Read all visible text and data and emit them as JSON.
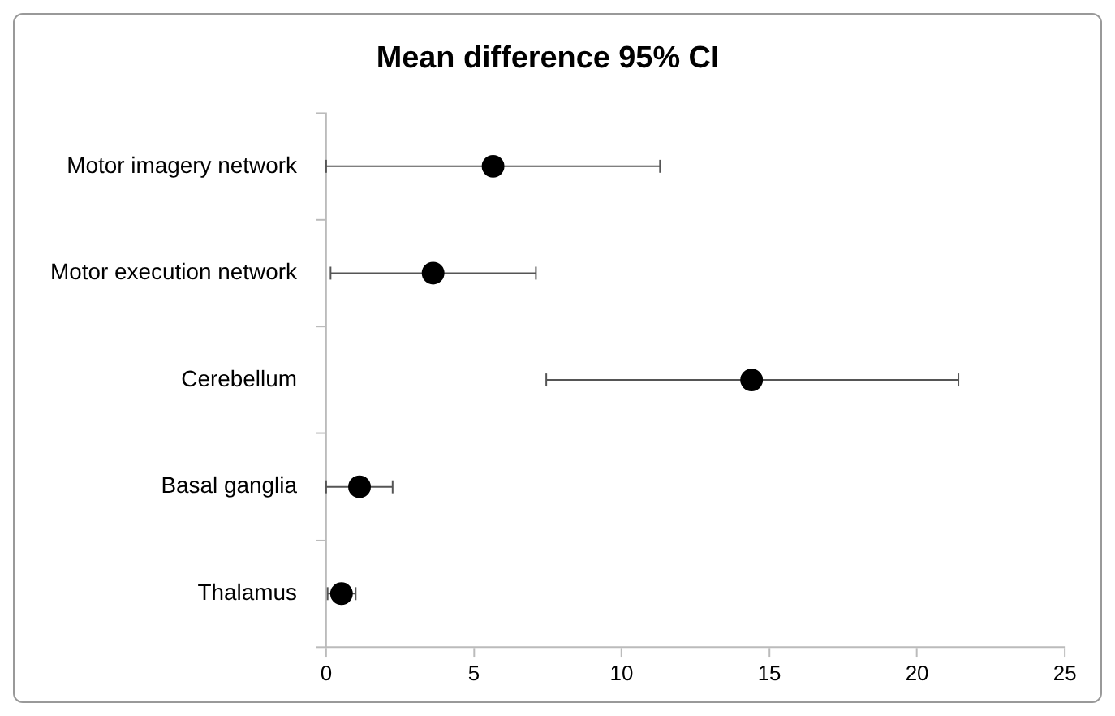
{
  "chart_data": {
    "type": "scatter",
    "title": "Mean difference 95% CI",
    "orientation": "horizontal",
    "categories": [
      "Motor imagery network",
      "Motor execution network",
      "Cerebellum",
      "Basal ganglia",
      "Thalamus"
    ],
    "values": [
      5.65,
      3.62,
      14.4,
      1.13,
      0.52
    ],
    "errors": [
      [
        0.0,
        11.3
      ],
      [
        0.15,
        7.1
      ],
      [
        7.45,
        21.4
      ],
      [
        0.0,
        2.25
      ],
      [
        0.05,
        1.0
      ]
    ],
    "color": "#000000",
    "marker": "circle",
    "grid": false,
    "legend": false,
    "xlim": [
      0,
      25
    ],
    "xticks": [
      0,
      5,
      10,
      15,
      20,
      25
    ]
  }
}
